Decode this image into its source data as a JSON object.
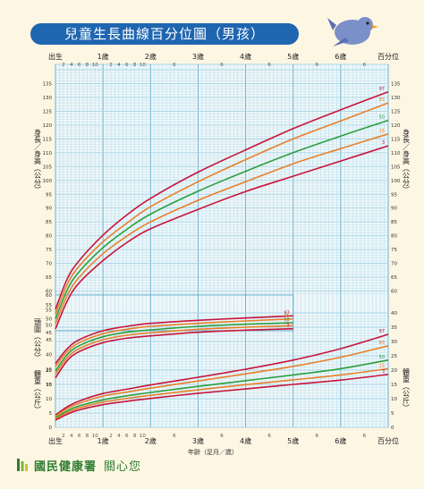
{
  "title": "兒童生長曲線百分位圖（男孩）",
  "footer": {
    "brand": "國民健康署",
    "slogan": "關心您"
  },
  "colors": {
    "p97": "#c8143c",
    "p85": "#e8802a",
    "p50": "#2e9e3e",
    "p15": "#e8802a",
    "p3": "#c8143c",
    "bg": "#fdf6e3",
    "grid": "#a8d4e6",
    "title_bg": "#1f66b0"
  },
  "chart_data": {
    "type": "line",
    "x_top_labels": [
      "出生",
      "1歲",
      "2歲",
      "3歲",
      "4歲",
      "5歲",
      "6歲",
      "百分位"
    ],
    "x_bottom_labels": [
      "出生",
      "1歲",
      "2歲",
      "3歲",
      "4歲",
      "5歲",
      "6歲",
      "百分位"
    ],
    "x_month_ticks": [
      "2",
      "4",
      "6",
      "8",
      "10"
    ],
    "x_axis_title": "年齡（足月／歲）",
    "x_range_years": [
      0,
      7
    ],
    "percentiles": [
      "97",
      "85",
      "50",
      "15",
      "3"
    ],
    "panels": [
      {
        "name": "身長／身高",
        "ylabel": "身長／身高（公分）",
        "ylim": [
          45,
          140
        ],
        "yticks": [
          45,
          50,
          55,
          60,
          65,
          70,
          75,
          80,
          85,
          90,
          95,
          100,
          105,
          110,
          115,
          120,
          125,
          130,
          135
        ],
        "x": [
          0,
          0.25,
          0.5,
          1,
          1.5,
          2,
          3,
          4,
          5,
          6,
          7
        ],
        "series": [
          {
            "name": "97",
            "values": [
              53.4,
              64.5,
              71.0,
              80.2,
              87.5,
              93.5,
              103.0,
              111.0,
              118.7,
              125.5,
              132.0
            ]
          },
          {
            "name": "85",
            "values": [
              51.7,
              62.5,
              69.0,
              77.8,
              84.5,
              90.5,
              99.5,
              107.5,
              115.0,
              121.5,
              128.0
            ]
          },
          {
            "name": "50",
            "values": [
              49.9,
              60.5,
              67.0,
              75.7,
              82.3,
              87.8,
              96.1,
              103.3,
              110.0,
              116.0,
              121.7
            ]
          },
          {
            "name": "15",
            "values": [
              48.2,
              58.5,
              65.0,
              73.5,
              79.8,
              85.0,
              92.8,
              99.5,
              106.0,
              111.5,
              116.8
            ]
          },
          {
            "name": "3",
            "values": [
              46.3,
              56.5,
              63.0,
              71.0,
              77.5,
              82.5,
              89.5,
              96.0,
              101.5,
              107.0,
              112.5
            ]
          }
        ],
        "right_yticks": [
          60,
          65,
          70,
          75,
          80,
          85,
          90,
          95,
          100,
          105,
          110,
          115,
          120,
          125,
          130,
          135
        ]
      },
      {
        "name": "頭圍",
        "ylabel": "頭圍（公分）",
        "ylim": [
          30,
          60
        ],
        "yticks": [
          30,
          35,
          40,
          45,
          50,
          55,
          60
        ],
        "x": [
          0,
          0.25,
          0.5,
          1,
          1.5,
          2,
          3,
          4,
          5
        ],
        "series": [
          {
            "name": "97",
            "values": [
              37.0,
              42.0,
              45.0,
              48.0,
              49.5,
              50.5,
              51.5,
              52.3,
              53.0
            ]
          },
          {
            "name": "85",
            "values": [
              36.0,
              41.0,
              44.0,
              47.0,
              48.5,
              49.5,
              50.5,
              51.3,
              52.0
            ]
          },
          {
            "name": "50",
            "values": [
              34.5,
              40.0,
              43.0,
              46.0,
              47.5,
              48.3,
              49.5,
              50.2,
              50.7
            ]
          },
          {
            "name": "15",
            "values": [
              33.5,
              39.0,
              42.0,
              45.0,
              46.5,
              47.3,
              48.5,
              49.2,
              49.7
            ]
          },
          {
            "name": "3",
            "values": [
              32.2,
              38.0,
              41.0,
              44.0,
              45.5,
              46.3,
              47.5,
              48.2,
              48.7
            ]
          }
        ]
      },
      {
        "name": "體重",
        "ylabel": "體重（公斤）",
        "ylim": [
          0,
          40
        ],
        "yticks": [
          0,
          5,
          10,
          15,
          20,
          25,
          30,
          35,
          40
        ],
        "x": [
          0,
          0.25,
          0.5,
          1,
          1.5,
          2,
          3,
          4,
          5,
          6,
          7
        ],
        "series": [
          {
            "name": "97",
            "values": [
              4.3,
              7.2,
              9.2,
              11.8,
              13.3,
              14.8,
              17.5,
              20.3,
              23.5,
              27.5,
              32.5
            ]
          },
          {
            "name": "85",
            "values": [
              3.9,
              6.6,
              8.4,
              10.9,
              12.3,
              13.7,
              16.2,
              18.7,
              21.3,
              24.5,
              28.5
            ]
          },
          {
            "name": "50",
            "values": [
              3.3,
              5.8,
              7.5,
              9.6,
              11.0,
              12.2,
              14.3,
              16.3,
              18.3,
              20.5,
              23.5
            ]
          },
          {
            "name": "15",
            "values": [
              2.9,
              5.2,
              6.8,
              8.8,
              10.1,
              11.2,
              13.1,
              14.9,
              16.6,
              18.3,
              20.5
            ]
          },
          {
            "name": "3",
            "values": [
              2.5,
              4.6,
              6.1,
              7.9,
              9.1,
              10.1,
              11.9,
              13.4,
              15.0,
              16.5,
              18.5
            ]
          }
        ],
        "right_yticks": [
          0,
          5,
          10,
          15,
          20,
          25,
          30,
          35,
          40
        ]
      }
    ]
  }
}
